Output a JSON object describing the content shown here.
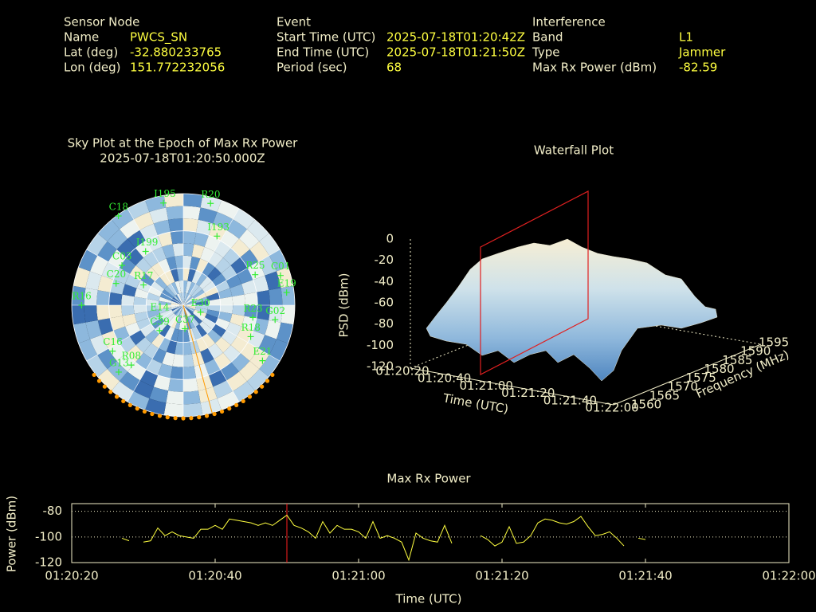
{
  "header": [
    {
      "title": "Sensor Node",
      "rows": [
        {
          "label": "Name",
          "value": "PWCS_SN"
        },
        {
          "label": "Lat (deg)",
          "value": "-32.880233765"
        },
        {
          "label": "Lon (deg)",
          "value": "151.772232056"
        }
      ]
    },
    {
      "title": "Event",
      "rows": [
        {
          "label": "Start Time (UTC)",
          "value": "2025-07-18T01:20:42Z"
        },
        {
          "label": "End Time (UTC)",
          "value": "2025-07-18T01:21:50Z"
        },
        {
          "label": "Period (sec)",
          "value": "68"
        }
      ]
    },
    {
      "title": "Interference",
      "rows": [
        {
          "label": "Band",
          "value": "L1"
        },
        {
          "label": "Type",
          "value": "Jammer"
        },
        {
          "label": "Max Rx Power (dBm)",
          "value": "-82.59"
        }
      ]
    }
  ],
  "chart_data": [
    {
      "type": "polar",
      "title": "Sky Plot at the Epoch of Max Rx Power",
      "subtitle": "2025-07-18T01:20:50.000Z",
      "color": "#33ee33",
      "satellites": [
        {
          "name": "R20",
          "az": 15,
          "el": 5
        },
        {
          "name": "I195",
          "az": 349,
          "el": 6
        },
        {
          "name": "C18",
          "az": 324,
          "el": 1
        },
        {
          "name": "C03",
          "az": 303,
          "el": 31
        },
        {
          "name": "I199",
          "az": 325,
          "el": 37
        },
        {
          "name": "I193",
          "az": 26,
          "el": 28
        },
        {
          "name": "C20",
          "az": 288,
          "el": 33
        },
        {
          "name": "R17",
          "az": 297,
          "el": 54
        },
        {
          "name": "R25",
          "az": 67,
          "el": 27
        },
        {
          "name": "C01",
          "az": 73,
          "el": 8
        },
        {
          "name": "E19",
          "az": 83,
          "el": 6
        },
        {
          "name": "G02",
          "az": 99,
          "el": 15
        },
        {
          "name": "R23",
          "az": 100,
          "el": 33
        },
        {
          "name": "R18",
          "az": 115,
          "el": 30
        },
        {
          "name": "E21",
          "az": 125,
          "el": 12
        },
        {
          "name": "C37",
          "az": 176,
          "el": 71
        },
        {
          "name": "E30",
          "az": 112,
          "el": 75
        },
        {
          "name": "C39",
          "az": 223,
          "el": 62
        },
        {
          "name": "E14",
          "az": 245,
          "el": 69
        },
        {
          "name": "R16",
          "az": 270,
          "el": 8
        },
        {
          "name": "R08",
          "az": 221,
          "el": 26
        },
        {
          "name": "G13",
          "az": 224,
          "el": 15
        },
        {
          "name": "C16",
          "az": 237,
          "el": 22
        }
      ]
    },
    {
      "type": "surface3d",
      "title": "Waterfall Plot",
      "zlabel": "PSD (dBm)",
      "xlabel": "Time (UTC)",
      "ylabel": "Frequency (MHz)",
      "zlim": [
        -120,
        0
      ],
      "zticks": [
        0,
        -20,
        -40,
        -60,
        -80,
        -100,
        -120
      ],
      "xticks": [
        "01:20:20",
        "01:20:40",
        "01:21:00",
        "01:21:20",
        "01:21:40",
        "01:22:00"
      ],
      "yticks": [
        1560,
        1565,
        1570,
        1575,
        1580,
        1585,
        1590,
        1595
      ]
    },
    {
      "type": "line",
      "title": "Max Rx Power",
      "xlabel": "Time (UTC)",
      "ylabel": "Power (dBm)",
      "color": "#ffff40",
      "xlim": [
        "01:20:20",
        "01:22:00"
      ],
      "xticks": [
        "01:20:20",
        "01:20:40",
        "01:21:00",
        "01:21:20",
        "01:21:40",
        "01:22:00"
      ],
      "ylim": [
        -120,
        -74
      ],
      "yticks": [
        -80,
        -100,
        -120
      ],
      "grid": true,
      "marker_x": "01:20:50",
      "marker_color": "#ff2020",
      "x": [
        "01:20:27",
        "01:20:28",
        "01:20:29",
        "01:20:30",
        "01:20:31",
        "01:20:32",
        "01:20:33",
        "01:20:34",
        "01:20:35",
        "01:20:36",
        "01:20:37",
        "01:20:38",
        "01:20:39",
        "01:20:40",
        "01:20:41",
        "01:20:42",
        "01:20:43",
        "01:20:44",
        "01:20:45",
        "01:20:46",
        "01:20:47",
        "01:20:48",
        "01:20:49",
        "01:20:50",
        "01:20:51",
        "01:20:52",
        "01:20:53",
        "01:20:54",
        "01:20:55",
        "01:20:56",
        "01:20:57",
        "01:20:58",
        "01:20:59",
        "01:21:00",
        "01:21:01",
        "01:21:02",
        "01:21:03",
        "01:21:04",
        "01:21:05",
        "01:21:06",
        "01:21:07",
        "01:21:08",
        "01:21:09",
        "01:21:10",
        "01:21:11",
        "01:21:12",
        "01:21:13",
        "01:21:14",
        "01:21:17",
        "01:21:18",
        "01:21:19",
        "01:21:20",
        "01:21:21",
        "01:21:22",
        "01:21:23",
        "01:21:24",
        "01:21:25",
        "01:21:26",
        "01:21:27",
        "01:21:28",
        "01:21:29",
        "01:21:30",
        "01:21:31",
        "01:21:32",
        "01:21:33",
        "01:21:34",
        "01:21:35",
        "01:21:36",
        "01:21:37",
        "01:21:38",
        "01:21:39",
        "01:21:40"
      ],
      "values": [
        -101,
        -103,
        null,
        -104,
        -103,
        -93,
        -99,
        -96,
        -99,
        -100,
        -101,
        -94,
        -94,
        -91,
        -94,
        -86,
        -87,
        -88,
        -89,
        -91,
        -89,
        -91,
        -87,
        -83,
        -91,
        -93,
        -96,
        -101,
        -88,
        -97,
        -91,
        -94,
        -94,
        -96,
        -101,
        -88,
        -101,
        -99,
        -101,
        -104,
        -118,
        -97,
        -101,
        -103,
        -104,
        -91,
        -105,
        null,
        -99,
        -102,
        -107,
        -104,
        -92,
        -105,
        -104,
        -99,
        -89,
        -86,
        -87,
        -89,
        -90,
        -88,
        -84,
        -92,
        -99,
        -98,
        -96,
        -101,
        -107,
        null,
        -101,
        -102
      ]
    }
  ]
}
